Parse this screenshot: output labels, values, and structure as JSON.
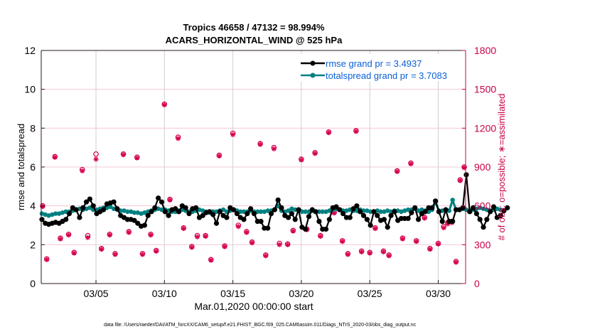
{
  "chart_data": {
    "type": "line",
    "title": "Tropics 46658 / 47132 = 98.994%",
    "subtitle": "ACARS_HORIZONTAL_WIND @ 525 hPa",
    "xlabel": "Mar.01,2020 00:00:00 start",
    "ylabel": "rmse and totalspread",
    "y2label": "# of obs: o=possible; ∗=assimilated",
    "footer": "data file: /Users/raeder/DAI/ATM_forcXX/CAM6_setup/f.e21.FHIST_BGC.f09_025.CAM6assim.011/Diags_NTrS_2020-03/obs_diag_output.nc",
    "xlim_days": [
      0,
      31
    ],
    "ylim": [
      0,
      12
    ],
    "y2lim": [
      0,
      1800
    ],
    "x_ticks": [
      {
        "day": 4,
        "label": "03/05"
      },
      {
        "day": 9,
        "label": "03/10"
      },
      {
        "day": 14,
        "label": "03/15"
      },
      {
        "day": 19,
        "label": "03/20"
      },
      {
        "day": 24,
        "label": "03/25"
      },
      {
        "day": 29,
        "label": "03/30"
      }
    ],
    "y_ticks": [
      "0",
      "2",
      "4",
      "6",
      "8",
      "10",
      "12"
    ],
    "y2_ticks": [
      "0",
      "300",
      "600",
      "900",
      "1200",
      "1500",
      "1800"
    ],
    "grid": true,
    "legend_position": "top-right",
    "colors": {
      "rmse": "#000000",
      "totalspread": "#008080",
      "obs": "#d6004f",
      "legend_text": "#0b5fd6",
      "right_axis": "#c8004a",
      "grid_h": "#f2c8d8",
      "grid_v": "#d0d0d0"
    },
    "series": [
      {
        "name": "rmse grand pr = 3.4937",
        "key": "rmse",
        "x_start_day": 0.0,
        "x_step_days": 0.25,
        "values": [
          3.3,
          3.1,
          3.05,
          3.1,
          3.15,
          3.1,
          3.2,
          3.3,
          3.6,
          3.9,
          3.8,
          3.4,
          3.9,
          4.2,
          4.35,
          4.0,
          3.6,
          3.7,
          3.8,
          4.1,
          4.15,
          4.2,
          3.85,
          3.5,
          3.4,
          3.3,
          3.3,
          3.25,
          3.1,
          2.95,
          3.0,
          3.5,
          3.7,
          3.9,
          4.4,
          4.2,
          3.7,
          3.5,
          3.8,
          3.85,
          3.7,
          4.0,
          3.9,
          3.6,
          3.85,
          3.9,
          3.4,
          3.5,
          3.65,
          3.7,
          3.55,
          3.1,
          3.7,
          3.5,
          3.4,
          3.9,
          3.8,
          3.6,
          3.4,
          3.3,
          3.6,
          3.85,
          3.6,
          3.2,
          3.2,
          2.85,
          2.85,
          3.6,
          3.8,
          4.3,
          3.9,
          3.5,
          3.4,
          3.6,
          3.3,
          3.8,
          2.9,
          2.8,
          3.45,
          3.8,
          3.7,
          3.2,
          2.8,
          2.8,
          3.3,
          3.9,
          3.95,
          3.8,
          3.6,
          3.4,
          3.4,
          3.85,
          4.0,
          3.7,
          3.5,
          3.3,
          3.0,
          3.7,
          3.5,
          3.25,
          3.3,
          2.9,
          3.5,
          3.7,
          3.25,
          3.35,
          3.35,
          3.35,
          3.65,
          3.9,
          3.3,
          3.6,
          3.7,
          3.9,
          3.9,
          4.25,
          3.7,
          3.2,
          3.8,
          3.2,
          3.2,
          3.8,
          3.8,
          3.9,
          5.6,
          3.7,
          3.9,
          3.6,
          3.3,
          2.9,
          3.3,
          3.7,
          3.95,
          3.4,
          3.5,
          3.75,
          3.9
        ],
        "markers": true
      },
      {
        "name": "totalspread grand pr = 3.7083",
        "key": "totalspread",
        "x_start_day": 0.0,
        "x_step_days": 0.25,
        "values": [
          3.6,
          3.55,
          3.5,
          3.55,
          3.6,
          3.6,
          3.65,
          3.7,
          3.7,
          3.75,
          3.8,
          3.85,
          3.8,
          3.85,
          3.9,
          3.8,
          3.8,
          3.85,
          3.9,
          3.9,
          3.95,
          3.85,
          3.8,
          3.75,
          3.75,
          3.7,
          3.7,
          3.65,
          3.65,
          3.6,
          3.65,
          3.7,
          3.75,
          3.8,
          3.85,
          3.8,
          3.8,
          3.75,
          3.7,
          3.7,
          3.75,
          3.8,
          3.75,
          3.7,
          3.7,
          3.75,
          3.8,
          3.75,
          3.7,
          3.65,
          3.7,
          3.7,
          3.75,
          3.8,
          3.7,
          3.75,
          3.8,
          3.75,
          3.7,
          3.7,
          3.7,
          3.75,
          3.7,
          3.7,
          3.7,
          3.7,
          3.75,
          3.75,
          3.8,
          4.0,
          3.75,
          3.7,
          3.75,
          3.85,
          3.8,
          3.75,
          3.7,
          3.7,
          3.7,
          3.75,
          3.7,
          3.7,
          3.7,
          3.7,
          3.75,
          3.8,
          3.85,
          3.8,
          3.75,
          3.75,
          3.8,
          3.75,
          3.75,
          3.8,
          3.75,
          3.75,
          3.7,
          3.7,
          3.75,
          3.7,
          3.7,
          3.75,
          3.7,
          3.75,
          3.75,
          3.7,
          3.75,
          3.8,
          3.8,
          3.85,
          3.75,
          3.8,
          3.75,
          3.7,
          3.8,
          4.2,
          3.75,
          3.75,
          3.8,
          3.75,
          4.3,
          3.8,
          3.8,
          3.85,
          3.8,
          3.75,
          3.8,
          3.85,
          3.9,
          3.85,
          3.8,
          3.75,
          3.8,
          3.85,
          3.8
        ],
        "markers": true
      },
      {
        "name": "obs possible",
        "key": "obs_possible",
        "axis": "right",
        "marker": "circle",
        "x_days": [
          0.1,
          0.4,
          1.0,
          1.4,
          2.0,
          2.4,
          3.0,
          3.4,
          4.0,
          4.4,
          5.0,
          5.4,
          6.0,
          6.4,
          7.0,
          7.4,
          8.0,
          8.4,
          9.0,
          9.4,
          10.0,
          10.4,
          11.0,
          11.4,
          12.0,
          12.4,
          13.0,
          13.4,
          14.0,
          14.4,
          15.0,
          15.4,
          16.0,
          16.4,
          17.0,
          17.4,
          18.0,
          18.4,
          19.0,
          19.4,
          20.0,
          20.4,
          21.0,
          21.4,
          22.0,
          22.4,
          23.0,
          23.4,
          24.0,
          24.4,
          25.0,
          25.4,
          26.0,
          26.4,
          27.0,
          27.4,
          28.0,
          28.4,
          29.0,
          29.4,
          29.7,
          30.0,
          30.3,
          30.6,
          30.9
        ],
        "values": [
          600,
          190,
          980,
          350,
          380,
          240,
          880,
          370,
          1000,
          270,
          380,
          230,
          1000,
          400,
          975,
          230,
          380,
          255,
          1385,
          650,
          1130,
          430,
          285,
          370,
          370,
          185,
          990,
          290,
          1160,
          450,
          400,
          320,
          1080,
          220,
          1050,
          310,
          305,
          410,
          960,
          420,
          1010,
          370,
          1170,
          550,
          330,
          230,
          1180,
          250,
          240,
          430,
          250,
          220,
          870,
          350,
          930,
          330,
          510,
          270,
          310,
          440,
          470,
          480,
          170,
          800,
          900
        ]
      },
      {
        "name": "obs assimilated",
        "key": "obs_assimilated",
        "axis": "right",
        "marker": "asterisk",
        "x_days": [
          0.1,
          0.4,
          1.0,
          1.4,
          2.0,
          2.4,
          3.0,
          3.4,
          4.0,
          4.4,
          5.0,
          5.4,
          6.0,
          6.4,
          7.0,
          7.4,
          8.0,
          8.4,
          9.0,
          9.4,
          10.0,
          10.4,
          11.0,
          11.4,
          12.0,
          12.4,
          13.0,
          13.4,
          14.0,
          14.4,
          15.0,
          15.4,
          16.0,
          16.4,
          17.0,
          17.4,
          18.0,
          18.4,
          19.0,
          19.4,
          20.0,
          20.4,
          21.0,
          21.4,
          22.0,
          22.4,
          23.0,
          23.4,
          24.0,
          24.4,
          25.0,
          25.4,
          26.0,
          26.4,
          27.0,
          27.4,
          28.0,
          28.4,
          29.0,
          29.4,
          29.7,
          30.0,
          30.3,
          30.6,
          30.9
        ],
        "values": [
          595,
          185,
          975,
          345,
          375,
          235,
          870,
          355,
          960,
          265,
          375,
          225,
          995,
          395,
          970,
          225,
          375,
          250,
          1380,
          645,
          1120,
          425,
          280,
          360,
          365,
          180,
          985,
          285,
          1150,
          440,
          395,
          315,
          1075,
          215,
          1040,
          300,
          300,
          405,
          955,
          415,
          1005,
          365,
          1165,
          545,
          325,
          225,
          1175,
          245,
          235,
          425,
          245,
          215,
          865,
          345,
          925,
          325,
          505,
          265,
          305,
          430,
          460,
          470,
          165,
          795,
          895
        ]
      }
    ],
    "legend": [
      {
        "label": "rmse grand pr = 3.4937",
        "color": "#000000"
      },
      {
        "label": "totalspread grand pr = 3.7083",
        "color": "#008080"
      }
    ]
  }
}
